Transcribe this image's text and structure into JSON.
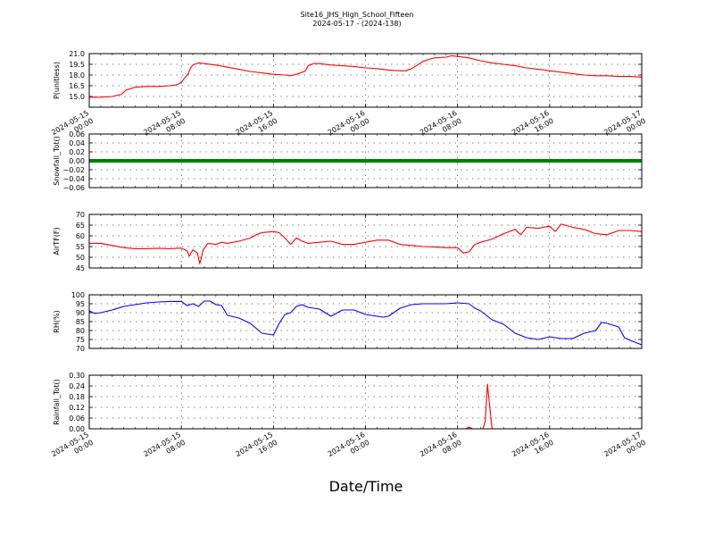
{
  "title_lines": [
    "Site16_JHS_High_School_Fifteen",
    "2024-05-17 - (2024-138)"
  ],
  "x_axis_label": "Date/Time",
  "colors": {
    "red": "#ff0000",
    "green": "#008000",
    "blue": "#0000ff",
    "axis": "#000000",
    "grid": "#000000"
  },
  "chart_data": [
    {
      "type": "line",
      "ylabel": "P(unitless)",
      "ylim": [
        13.5,
        21.0
      ],
      "yticks": [
        15.0,
        16.5,
        18.0,
        19.5,
        21.0
      ],
      "ytick_labels": [
        "15.0",
        "16.5",
        "18.0",
        "19.5",
        "21.0"
      ],
      "xlim": [
        0,
        48
      ],
      "xticks": [
        0,
        8,
        16,
        24,
        32,
        40,
        48
      ],
      "xtick_labels": [
        [
          "2024-05-15",
          "00:00"
        ],
        [
          "2024-05-15",
          "08:00"
        ],
        [
          "2024-05-15",
          "16:00"
        ],
        [
          "2024-05-16",
          "00:00"
        ],
        [
          "2024-05-16",
          "08:00"
        ],
        [
          "2024-05-16",
          "16:00"
        ],
        [
          "2024-05-17",
          "00:00"
        ]
      ],
      "grid": true,
      "series": [
        {
          "color": "#ff0000",
          "points": [
            [
              0,
              14.9
            ],
            [
              1,
              14.9
            ],
            [
              2,
              15.0
            ],
            [
              2.8,
              15.3
            ],
            [
              3.2,
              15.9
            ],
            [
              4,
              16.3
            ],
            [
              5,
              16.4
            ],
            [
              6,
              16.4
            ],
            [
              7,
              16.5
            ],
            [
              7.5,
              16.6
            ],
            [
              7.8,
              16.8
            ],
            [
              8,
              17.0
            ],
            [
              8.3,
              17.6
            ],
            [
              8.6,
              18.2
            ],
            [
              8.8,
              19.0
            ],
            [
              9,
              19.4
            ],
            [
              9.5,
              19.7
            ],
            [
              10,
              19.6
            ],
            [
              11,
              19.4
            ],
            [
              12,
              19.1
            ],
            [
              13,
              18.8
            ],
            [
              14,
              18.5
            ],
            [
              15,
              18.3
            ],
            [
              16,
              18.1
            ],
            [
              17,
              18.0
            ],
            [
              17.5,
              17.9
            ],
            [
              18,
              18.1
            ],
            [
              18.5,
              18.4
            ],
            [
              18.8,
              18.6
            ],
            [
              19,
              19.3
            ],
            [
              19.5,
              19.6
            ],
            [
              20,
              19.6
            ],
            [
              21,
              19.4
            ],
            [
              22,
              19.3
            ],
            [
              23,
              19.2
            ],
            [
              24,
              19.0
            ],
            [
              25,
              18.9
            ],
            [
              26,
              18.7
            ],
            [
              27,
              18.6
            ],
            [
              27.5,
              18.6
            ],
            [
              28,
              18.9
            ],
            [
              28.5,
              19.4
            ],
            [
              29,
              19.9
            ],
            [
              29.5,
              20.2
            ],
            [
              30,
              20.4
            ],
            [
              31,
              20.5
            ],
            [
              31.5,
              20.7
            ],
            [
              32,
              20.6
            ],
            [
              33,
              20.4
            ],
            [
              34,
              20.0
            ],
            [
              35,
              19.7
            ],
            [
              36,
              19.5
            ],
            [
              37,
              19.3
            ],
            [
              38,
              19.0
            ],
            [
              39,
              18.8
            ],
            [
              40,
              18.6
            ],
            [
              41,
              18.4
            ],
            [
              42,
              18.2
            ],
            [
              43,
              18.0
            ],
            [
              44,
              17.9
            ],
            [
              45,
              17.9
            ],
            [
              46,
              17.8
            ],
            [
              47,
              17.8
            ],
            [
              48,
              17.7
            ]
          ]
        }
      ]
    },
    {
      "type": "line",
      "ylabel": "Snowfall_Tot()",
      "ylim": [
        -0.06,
        0.06
      ],
      "yticks": [
        -0.06,
        -0.04,
        -0.02,
        0.0,
        0.02,
        0.04,
        0.06
      ],
      "ytick_labels": [
        "−0.06",
        "−0.04",
        "−0.02",
        "0.00",
        "0.02",
        "0.04",
        "0.06"
      ],
      "xlim": [
        0,
        48
      ],
      "xticks": [
        0,
        8,
        16,
        24,
        32,
        40,
        48
      ],
      "xtick_labels": [],
      "grid": true,
      "series": [
        {
          "color": "#008000",
          "constant": 0.0
        }
      ]
    },
    {
      "type": "line",
      "ylabel": "AirTF(F)",
      "ylim": [
        45,
        70
      ],
      "yticks": [
        45,
        50,
        55,
        60,
        65,
        70
      ],
      "ytick_labels": [
        "45",
        "50",
        "55",
        "60",
        "65",
        "70"
      ],
      "xlim": [
        0,
        48
      ],
      "xticks": [
        0,
        8,
        16,
        24,
        32,
        40,
        48
      ],
      "xtick_labels": [],
      "grid": true,
      "series": [
        {
          "color": "#ff0000",
          "points": [
            [
              0,
              56.5
            ],
            [
              1,
              56.5
            ],
            [
              2,
              55.5
            ],
            [
              3,
              54.5
            ],
            [
              4,
              54.0
            ],
            [
              5,
              54.0
            ],
            [
              6,
              54.2
            ],
            [
              7,
              54.0
            ],
            [
              8,
              54.3
            ],
            [
              8.5,
              53.0
            ],
            [
              8.7,
              50.5
            ],
            [
              9,
              53.5
            ],
            [
              9.4,
              52.0
            ],
            [
              9.6,
              47.0
            ],
            [
              9.9,
              53.5
            ],
            [
              10.3,
              56.5
            ],
            [
              11,
              56.0
            ],
            [
              11.5,
              57.0
            ],
            [
              12,
              56.5
            ],
            [
              13,
              57.5
            ],
            [
              14,
              59.0
            ],
            [
              14.5,
              60.5
            ],
            [
              15,
              61.5
            ],
            [
              16,
              62.0
            ],
            [
              16.5,
              61.5
            ],
            [
              17,
              59.0
            ],
            [
              17.5,
              56.0
            ],
            [
              18,
              59.0
            ],
            [
              18.5,
              57.5
            ],
            [
              19,
              56.5
            ],
            [
              20,
              57.0
            ],
            [
              21,
              57.5
            ],
            [
              22,
              56.0
            ],
            [
              23,
              56.0
            ],
            [
              24,
              57.0
            ],
            [
              25,
              58.0
            ],
            [
              26,
              58.0
            ],
            [
              27,
              56.0
            ],
            [
              28,
              55.5
            ],
            [
              29,
              55.0
            ],
            [
              30,
              54.8
            ],
            [
              31,
              54.5
            ],
            [
              32,
              54.5
            ],
            [
              32.5,
              52.0
            ],
            [
              33,
              52.5
            ],
            [
              33.5,
              56.0
            ],
            [
              34,
              57.0
            ],
            [
              35,
              58.5
            ],
            [
              36,
              61.0
            ],
            [
              37,
              63.0
            ],
            [
              37.5,
              60.5
            ],
            [
              38,
              64.0
            ],
            [
              39,
              63.5
            ],
            [
              40,
              64.5
            ],
            [
              40.5,
              62.0
            ],
            [
              41,
              65.5
            ],
            [
              42,
              64.0
            ],
            [
              43,
              63.0
            ],
            [
              44,
              61.0
            ],
            [
              45,
              60.5
            ],
            [
              46,
              62.5
            ],
            [
              47,
              62.5
            ],
            [
              48,
              62.0
            ]
          ]
        }
      ]
    },
    {
      "type": "line",
      "ylabel": "RH(%)",
      "ylim": [
        70,
        100
      ],
      "yticks": [
        70,
        75,
        80,
        85,
        90,
        95,
        100
      ],
      "ytick_labels": [
        "70",
        "75",
        "80",
        "85",
        "90",
        "95",
        "100"
      ],
      "xlim": [
        0,
        48
      ],
      "xticks": [
        0,
        8,
        16,
        24,
        32,
        40,
        48
      ],
      "xtick_labels": [],
      "grid": true,
      "series": [
        {
          "color": "#0000ff",
          "points": [
            [
              0,
              91.0
            ],
            [
              0.5,
              89.5
            ],
            [
              1,
              90.0
            ],
            [
              2,
              91.5
            ],
            [
              3,
              93.5
            ],
            [
              4,
              94.5
            ],
            [
              5,
              95.5
            ],
            [
              6,
              96.0
            ],
            [
              7,
              96.3
            ],
            [
              8,
              96.3
            ],
            [
              8.5,
              94.0
            ],
            [
              9,
              95.0
            ],
            [
              9.5,
              93.5
            ],
            [
              10,
              96.5
            ],
            [
              10.5,
              96.5
            ],
            [
              11,
              94.5
            ],
            [
              11.5,
              94.0
            ],
            [
              12,
              88.5
            ],
            [
              13,
              87.0
            ],
            [
              14,
              84.0
            ],
            [
              15,
              78.5
            ],
            [
              15.5,
              78.0
            ],
            [
              16,
              77.5
            ],
            [
              16.5,
              84.0
            ],
            [
              17,
              89.0
            ],
            [
              17.5,
              90.0
            ],
            [
              18,
              93.5
            ],
            [
              18.5,
              94.5
            ],
            [
              19,
              93.0
            ],
            [
              20,
              92.0
            ],
            [
              21,
              88.0
            ],
            [
              22,
              91.5
            ],
            [
              23,
              91.5
            ],
            [
              24,
              89.0
            ],
            [
              25,
              88.0
            ],
            [
              25.5,
              87.5
            ],
            [
              26,
              88.0
            ],
            [
              27,
              92.5
            ],
            [
              28,
              94.5
            ],
            [
              29,
              95.0
            ],
            [
              30,
              95.0
            ],
            [
              31,
              95.0
            ],
            [
              32,
              95.5
            ],
            [
              33,
              95.0
            ],
            [
              33.5,
              92.5
            ],
            [
              34,
              91.0
            ],
            [
              35,
              86.0
            ],
            [
              36,
              83.5
            ],
            [
              37,
              78.5
            ],
            [
              38,
              76.0
            ],
            [
              39,
              75.0
            ],
            [
              40,
              76.5
            ],
            [
              41,
              75.5
            ],
            [
              42,
              75.5
            ],
            [
              43,
              78.5
            ],
            [
              44,
              80.0
            ],
            [
              44.5,
              84.5
            ],
            [
              45,
              84.0
            ],
            [
              46,
              82.0
            ],
            [
              46.5,
              76.0
            ],
            [
              47,
              74.5
            ],
            [
              48,
              72.0
            ]
          ]
        }
      ]
    },
    {
      "type": "line",
      "ylabel": "Rainfall_Tot()",
      "ylim": [
        0.0,
        0.3
      ],
      "yticks": [
        0.0,
        0.06,
        0.12,
        0.18,
        0.24,
        0.3
      ],
      "ytick_labels": [
        "0.00",
        "0.06",
        "0.12",
        "0.18",
        "0.24",
        "0.30"
      ],
      "xlim": [
        0,
        48
      ],
      "xticks": [
        0,
        8,
        16,
        24,
        32,
        40,
        48
      ],
      "xtick_labels": [
        [
          "2024-05-15",
          "00:00"
        ],
        [
          "2024-05-15",
          "08:00"
        ],
        [
          "2024-05-15",
          "16:00"
        ],
        [
          "2024-05-16",
          "00:00"
        ],
        [
          "2024-05-16",
          "08:00"
        ],
        [
          "2024-05-16",
          "16:00"
        ],
        [
          "2024-05-17",
          "00:00"
        ]
      ],
      "grid": true,
      "series": [
        {
          "color": "#ff0000",
          "points": [
            [
              0,
              0.0
            ],
            [
              32.7,
              0.0
            ],
            [
              33,
              0.01
            ],
            [
              33.3,
              0.0
            ],
            [
              34.2,
              0.0
            ],
            [
              34.4,
              0.04
            ],
            [
              34.6,
              0.25
            ],
            [
              34.8,
              0.12
            ],
            [
              35,
              0.0
            ],
            [
              48,
              0.0
            ]
          ]
        }
      ]
    }
  ]
}
